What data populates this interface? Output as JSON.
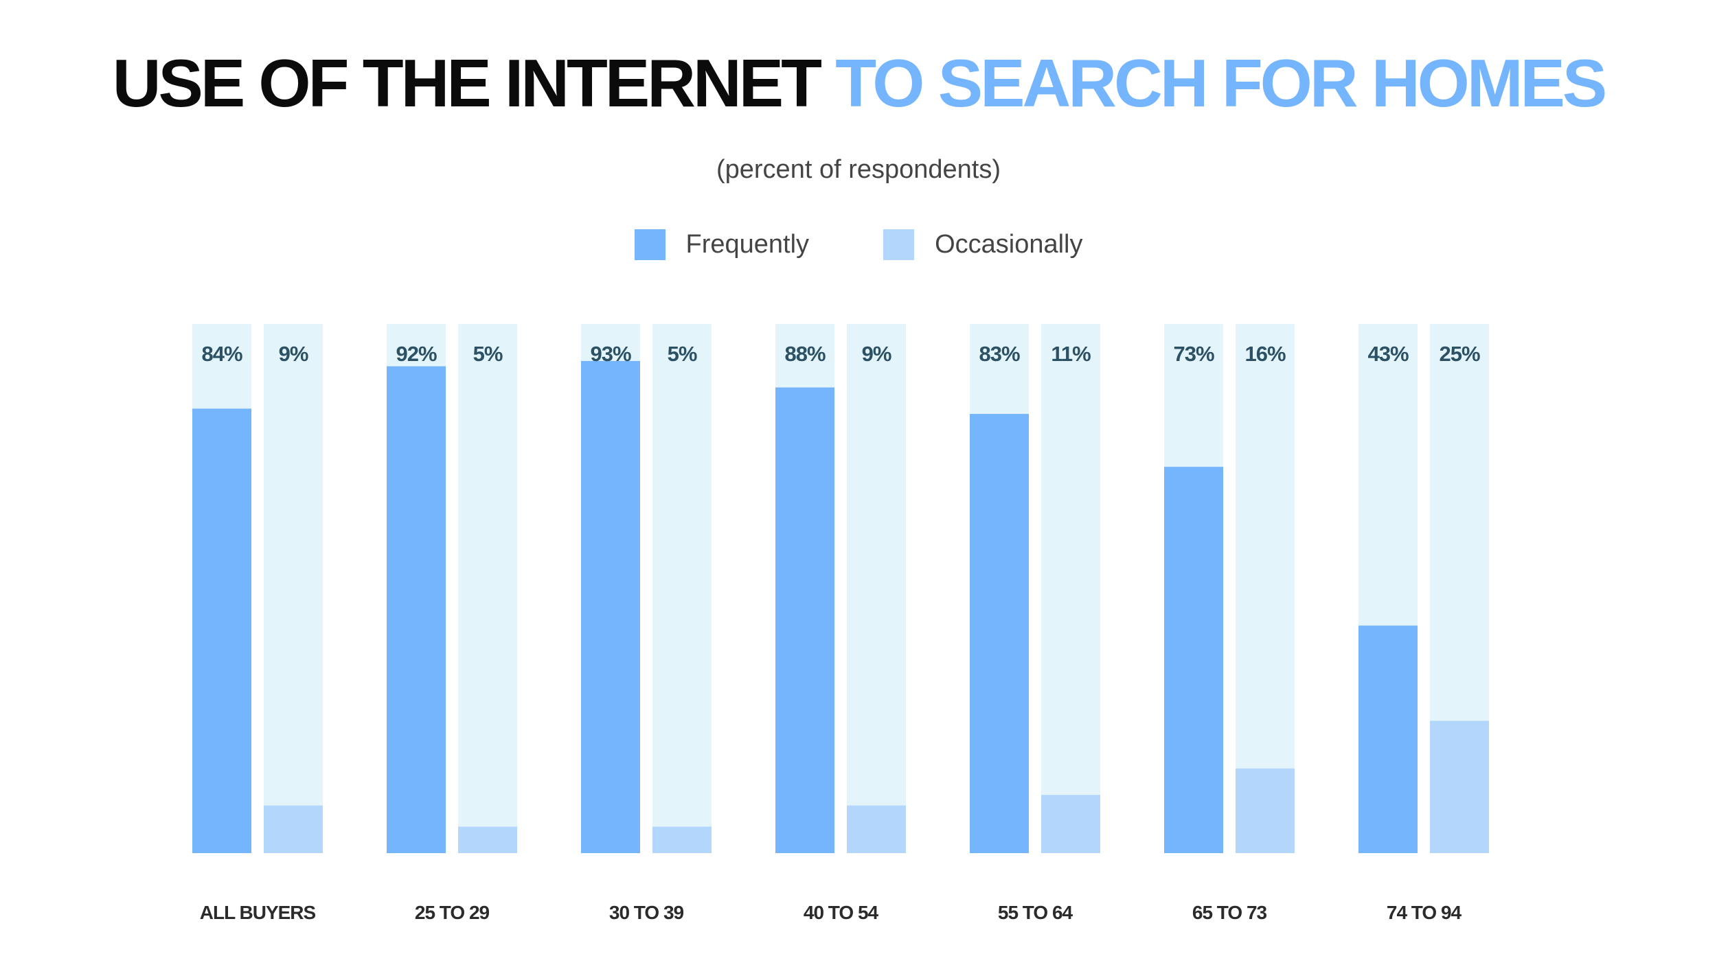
{
  "title": {
    "part1": "USE OF THE INTERNET",
    "part2": "TO SEARCH FOR HOMES"
  },
  "subtitle": "(percent of respondents)",
  "legend": [
    {
      "label": "Frequently",
      "color": "#74b5fd"
    },
    {
      "label": "Occasionally",
      "color": "#b3d6fd"
    }
  ],
  "colors": {
    "track": "#e3f4fb",
    "frequently": "#74b5fd",
    "occasionally": "#b3d6fd",
    "value_label": "#2c5164"
  },
  "chart_data": {
    "type": "bar",
    "title": "USE OF THE INTERNET TO SEARCH FOR HOMES",
    "subtitle": "(percent of respondents)",
    "categories": [
      "ALL BUYERS",
      "25 TO 29",
      "30 TO 39",
      "40 TO 54",
      "55 TO 64",
      "65 TO 73",
      "74 TO 94"
    ],
    "series": [
      {
        "name": "Frequently",
        "values": [
          84,
          92,
          93,
          88,
          83,
          73,
          43
        ],
        "labels": [
          "84%",
          "92%",
          "93%",
          "88%",
          "83%",
          "73%",
          "43%"
        ]
      },
      {
        "name": "Occasionally",
        "values": [
          9,
          5,
          5,
          9,
          11,
          16,
          25
        ],
        "labels": [
          "9%",
          "5%",
          "5%",
          "9%",
          "11%",
          "16%",
          "25%"
        ]
      }
    ],
    "ylim": [
      0,
      100
    ],
    "grid": false,
    "legend_position": "top-center"
  }
}
